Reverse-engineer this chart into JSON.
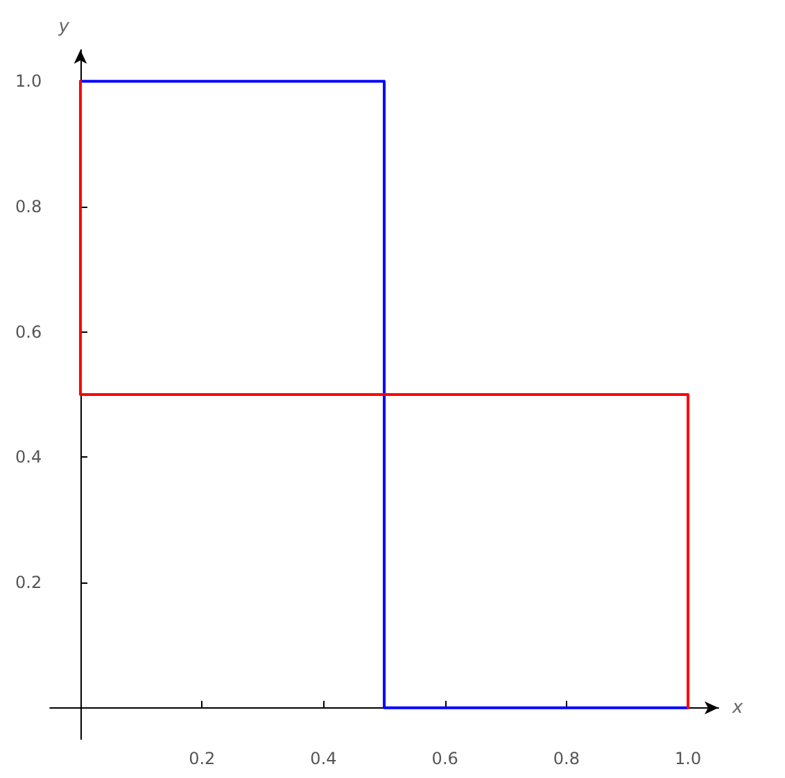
{
  "chart_data": {
    "type": "line",
    "xlabel": "x",
    "ylabel": "y",
    "xlim": [
      -0.05,
      1.05
    ],
    "ylim": [
      -0.05,
      1.05
    ],
    "xticks": [
      0.2,
      0.4,
      0.6,
      0.8,
      {
        "value": 1,
        "label": "1.0"
      }
    ],
    "yticks": [
      0.2,
      0.4,
      0.6,
      0.8,
      {
        "value": 1,
        "label": "1.0"
      }
    ],
    "grid": false,
    "marker": "none",
    "line_style": "solid",
    "series": [
      {
        "color": "#0000ff",
        "x": [
          0,
          0.5,
          0.5,
          1
        ],
        "values": [
          1,
          1,
          0,
          0
        ]
      },
      {
        "color": "#ff0000",
        "x": [
          0,
          0,
          1,
          1
        ],
        "values": [
          1,
          0.5,
          0.5,
          0
        ]
      }
    ]
  }
}
